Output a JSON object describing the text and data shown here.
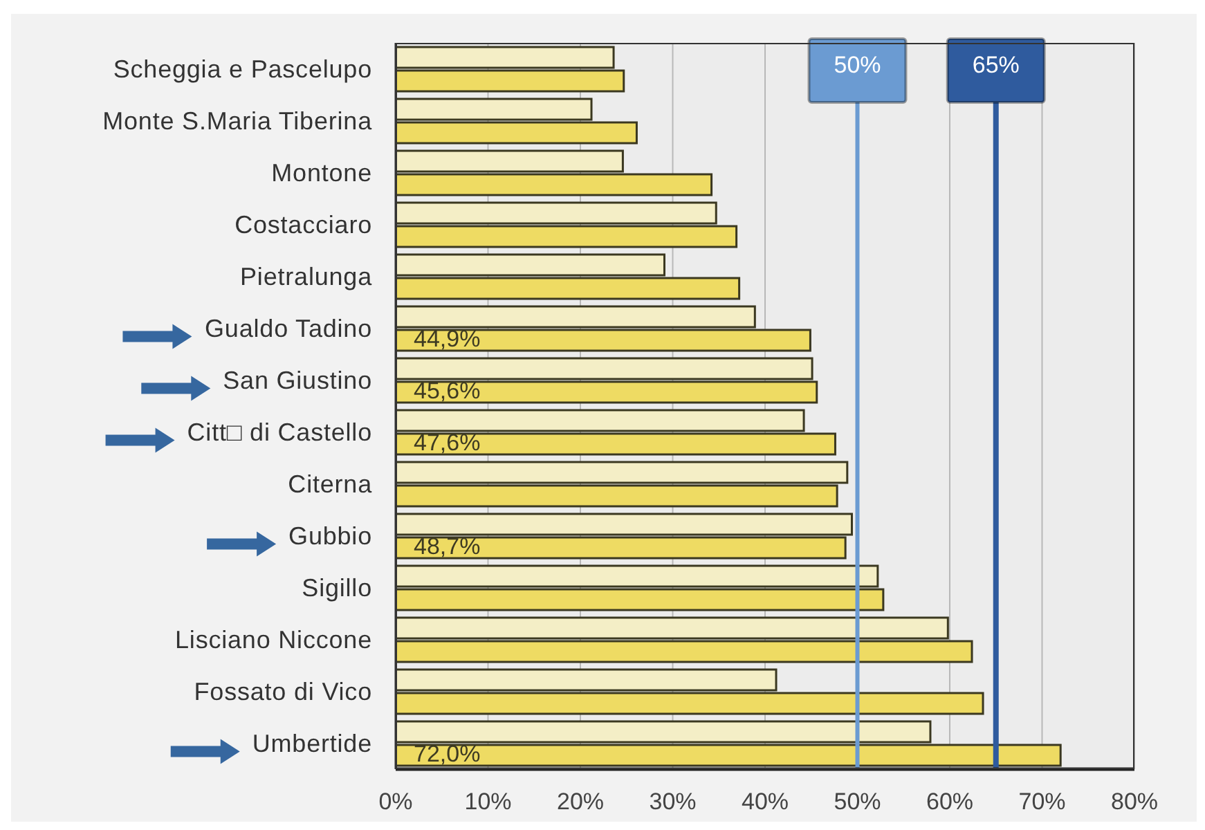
{
  "chart_data": {
    "type": "bar",
    "orientation": "horizontal",
    "categories": [
      "Scheggia e Pascelupo",
      "Monte S.Maria Tiberina",
      "Montone",
      "Costacciaro",
      "Pietralunga",
      "Gualdo Tadino",
      "San Giustino",
      "Citt□ di Castello",
      "Citerna",
      "Gubbio",
      "Sigillo",
      "Lisciano Niccone",
      "Fossato di Vico",
      "Umbertide"
    ],
    "series": [
      {
        "color": "#f4eec6",
        "values": [
          23.6,
          21.2,
          24.6,
          34.7,
          29.1,
          38.9,
          45.1,
          44.2,
          48.9,
          49.4,
          52.2,
          59.8,
          41.2,
          57.9
        ]
      },
      {
        "color": "#eedb63",
        "values": [
          24.7,
          26.1,
          34.2,
          36.9,
          37.2,
          44.9,
          45.6,
          47.6,
          47.8,
          48.7,
          52.8,
          62.4,
          63.6,
          72.0
        ],
        "value_labels": [
          null,
          null,
          null,
          null,
          null,
          "44,9%",
          "45,6%",
          "47,6%",
          null,
          "48,7%",
          null,
          null,
          null,
          "72,0%"
        ]
      }
    ],
    "xlim": [
      0,
      80
    ],
    "xticks": [
      {
        "value": 0,
        "label": "0%"
      },
      {
        "value": 10,
        "label": "10%"
      },
      {
        "value": 20,
        "label": "20%"
      },
      {
        "value": 30,
        "label": "30%"
      },
      {
        "value": 40,
        "label": "40%"
      },
      {
        "value": 50,
        "label": "50%"
      },
      {
        "value": 60,
        "label": "60%"
      },
      {
        "value": 70,
        "label": "70%"
      },
      {
        "value": 80,
        "label": "80%"
      }
    ],
    "grid": "x",
    "ref_lines": [
      {
        "axis": "x",
        "value": 50,
        "label": "50%",
        "color": "#6b9bd2"
      },
      {
        "axis": "x",
        "value": 65,
        "label": "65%",
        "color": "#2f5b9e"
      }
    ]
  }
}
